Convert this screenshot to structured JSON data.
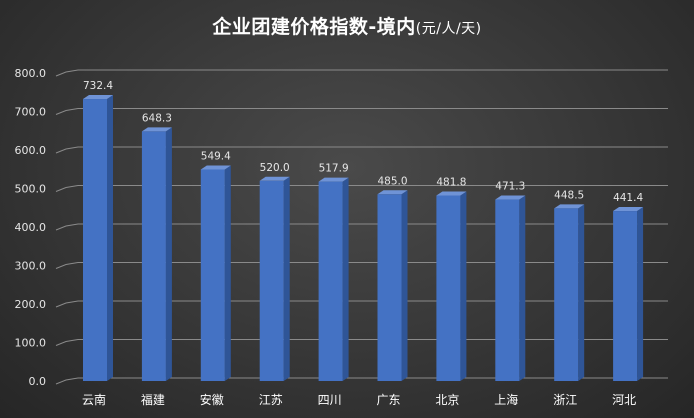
{
  "chart_data": {
    "type": "bar",
    "title": "企业团建价格指数-境内",
    "title_unit": "(元/人/天)",
    "categories": [
      "云南",
      "福建",
      "安徽",
      "江苏",
      "四川",
      "广东",
      "北京",
      "上海",
      "浙江",
      "河北"
    ],
    "values": [
      732.4,
      648.3,
      549.4,
      520.0,
      517.9,
      485.0,
      481.8,
      471.3,
      448.5,
      441.4
    ],
    "value_labels": [
      "732.4",
      "648.3",
      "549.4",
      "520.0",
      "517.9",
      "485.0",
      "481.8",
      "471.3",
      "448.5",
      "441.4"
    ],
    "y_ticks": [
      "0.0",
      "100.0",
      "200.0",
      "300.0",
      "400.0",
      "500.0",
      "600.0",
      "700.0",
      "800.0"
    ],
    "xlabel": "",
    "ylabel": "",
    "ylim": [
      0,
      800
    ],
    "grid": true,
    "legend": "none",
    "style": "3d-column"
  },
  "colors": {
    "bar_front": "#4472c4",
    "bar_side": "#2f5597",
    "bar_top": "#6f93d6",
    "gridline": "#8a8a8a",
    "text": "#ffffff",
    "background": "#3a3a3a"
  }
}
